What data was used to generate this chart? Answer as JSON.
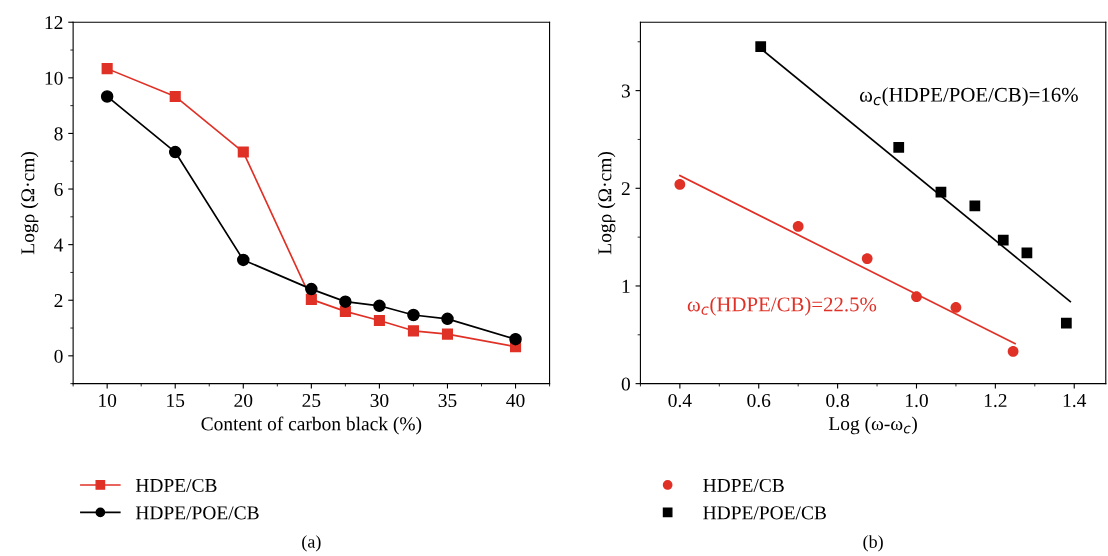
{
  "chart_data": [
    {
      "type": "line",
      "xlabel": "Content of carbon black (%)",
      "ylabel": "Logρ (Ω·cm)",
      "x": [
        10,
        15,
        20,
        25,
        27.5,
        30,
        32.5,
        35,
        40
      ],
      "xlim": [
        7.5,
        42.5
      ],
      "ylim": [
        -1,
        12
      ],
      "xticks": [
        10,
        15,
        20,
        25,
        30,
        35,
        40
      ],
      "yticks": [
        0,
        2,
        4,
        6,
        8,
        10,
        12
      ],
      "legend": "bottom",
      "grid": false,
      "series": [
        {
          "name": "HDPE/CB",
          "color": "#e03127",
          "marker": "square",
          "values": [
            10.33,
            9.33,
            7.33,
            2.03,
            1.6,
            1.27,
            0.9,
            0.78,
            0.33
          ]
        },
        {
          "name": "HDPE/POE/CB",
          "color": "#000000",
          "marker": "circle",
          "values": [
            9.33,
            7.33,
            3.45,
            2.4,
            1.95,
            1.8,
            1.47,
            1.33,
            0.6
          ]
        }
      ],
      "annotations": [
        "(a)"
      ]
    },
    {
      "type": "scatter",
      "xlabel": "Log (ω-ω$_{c}$)",
      "ylabel": "Logρ (Ω·cm)",
      "xlim": [
        0.3,
        1.48
      ],
      "ylim": [
        0,
        3.7
      ],
      "xticks": [
        0.4,
        0.6,
        0.8,
        {
          "value": 1.0,
          "label": "1.0"
        },
        1.2,
        1.4
      ],
      "yticks": [
        0,
        1,
        2,
        3
      ],
      "legend": "bottom",
      "grid": false,
      "series": [
        {
          "name": "HDPE/CB",
          "color": "#e03127",
          "marker": "circle",
          "x": [
            0.4,
            0.7,
            0.875,
            1.0,
            1.1,
            1.245
          ],
          "values": [
            2.04,
            1.61,
            1.28,
            0.89,
            0.78,
            0.33
          ]
        },
        {
          "name": "HDPE/POE/CB",
          "color": "#000000",
          "marker": "square",
          "x": [
            0.605,
            0.955,
            1.062,
            1.148,
            1.22,
            1.28,
            1.38
          ],
          "values": [
            3.45,
            2.42,
            1.96,
            1.82,
            1.47,
            1.34,
            0.62
          ]
        },
        {
          "type": "line",
          "color": "#e03127",
          "marker": "none",
          "x": [
            0.4,
            1.25
          ],
          "values": [
            2.13,
            0.41
          ]
        },
        {
          "type": "line",
          "color": "#000000",
          "marker": "none",
          "x": [
            0.605,
            1.39
          ],
          "values": [
            3.43,
            0.84
          ]
        }
      ],
      "annotations": [
        "ω$_{c}$(HDPE/POE/CB)=16%",
        "ω$_{c}$(HDPE/CB)=22.5%",
        "(b)"
      ]
    }
  ]
}
